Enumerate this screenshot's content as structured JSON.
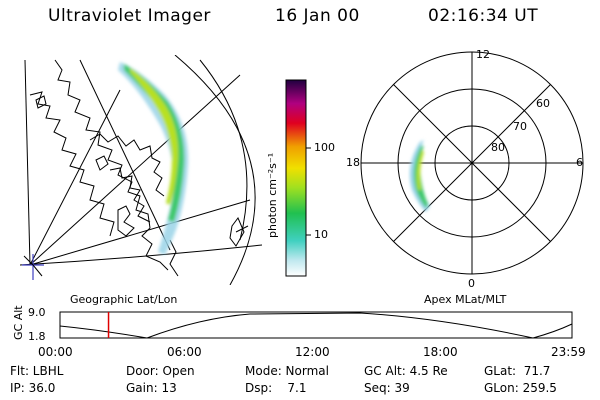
{
  "header": {
    "title": "Ultraviolet Imager",
    "date": "16 Jan 00",
    "time": "02:16:34 UT"
  },
  "colorbar": {
    "unit_label": "photon cm⁻²s⁻¹",
    "ticks": [
      "100",
      "10"
    ]
  },
  "polar": {
    "mlt_labels": [
      "12",
      "18",
      "6",
      "0"
    ],
    "lat_labels": [
      "60",
      "70",
      "80"
    ]
  },
  "panels": {
    "left_label": "Geographic Lat/Lon",
    "right_label": "Apex MLat/MLT"
  },
  "timeline": {
    "axis_label": "GC Alt",
    "y_ticks": [
      "9.0",
      "1.8"
    ],
    "x_ticks": [
      "00:00",
      "06:00",
      "12:00",
      "18:00",
      "23:59"
    ],
    "current_time_fraction": 0.0948
  },
  "status": {
    "filter": "Flt: LBHL",
    "ip": "IP: 36.0",
    "door": "Door: Open",
    "gain": "Gain: 13",
    "mode": "Mode: Normal",
    "dsp": "Dsp:    7.1",
    "gc_alt": "GC Alt: 4.5 Re",
    "seq": "Seq: 39",
    "glat": "GLat:  71.7",
    "glon": "GLon: 259.5"
  },
  "colors": {
    "aurora_low": "#9ad4e8",
    "aurora_mid": "#3ec86a",
    "aurora_high": "#b8e020",
    "marker": "#e00000"
  }
}
